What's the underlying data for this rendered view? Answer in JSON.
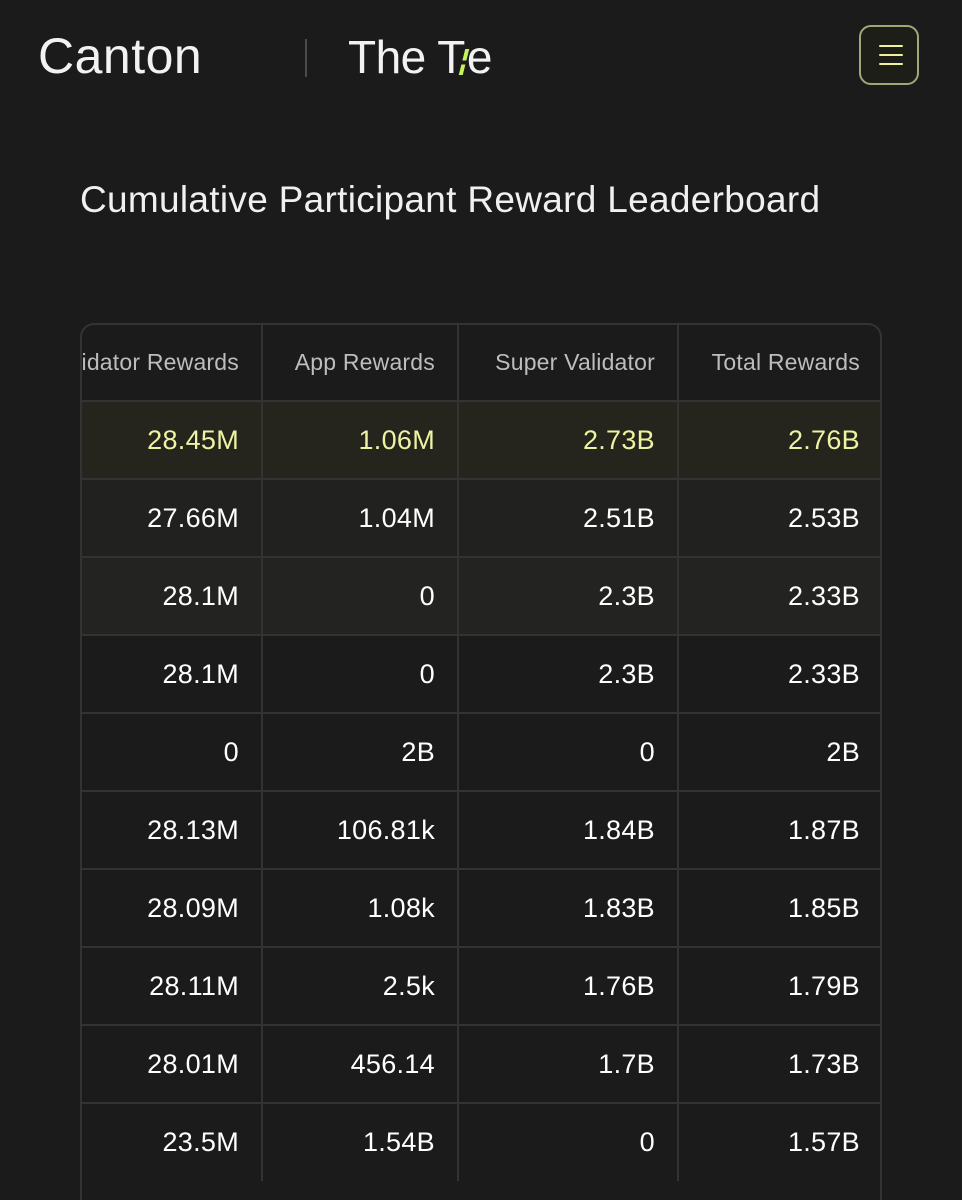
{
  "header": {
    "brand_primary": "Canton",
    "brand_secondary_left": "The T",
    "brand_secondary_right": "e",
    "menu_icon": "hamburger-menu-icon"
  },
  "page": {
    "title": "Cumulative Participant Reward Leaderboard"
  },
  "table": {
    "columns": [
      "Validator Rewards",
      "App Rewards",
      "Super Validator",
      "Total Rewards"
    ],
    "rows": [
      [
        "28.45M",
        "1.06M",
        "2.73B",
        "2.76B"
      ],
      [
        "27.66M",
        "1.04M",
        "2.51B",
        "2.53B"
      ],
      [
        "28.1M",
        "0",
        "2.3B",
        "2.33B"
      ],
      [
        "28.1M",
        "0",
        "2.3B",
        "2.33B"
      ],
      [
        "0",
        "2B",
        "0",
        "2B"
      ],
      [
        "28.13M",
        "106.81k",
        "1.84B",
        "1.87B"
      ],
      [
        "28.09M",
        "1.08k",
        "1.83B",
        "1.85B"
      ],
      [
        "28.11M",
        "2.5k",
        "1.76B",
        "1.79B"
      ],
      [
        "28.01M",
        "456.14",
        "1.7B",
        "1.73B"
      ],
      [
        "23.5M",
        "1.54B",
        "0",
        "1.57B"
      ]
    ]
  },
  "colors": {
    "background": "#1b1b1b",
    "highlight_text": "#eef3a3",
    "accent_green": "#c6f25a",
    "menu_border": "#a5a57a"
  }
}
